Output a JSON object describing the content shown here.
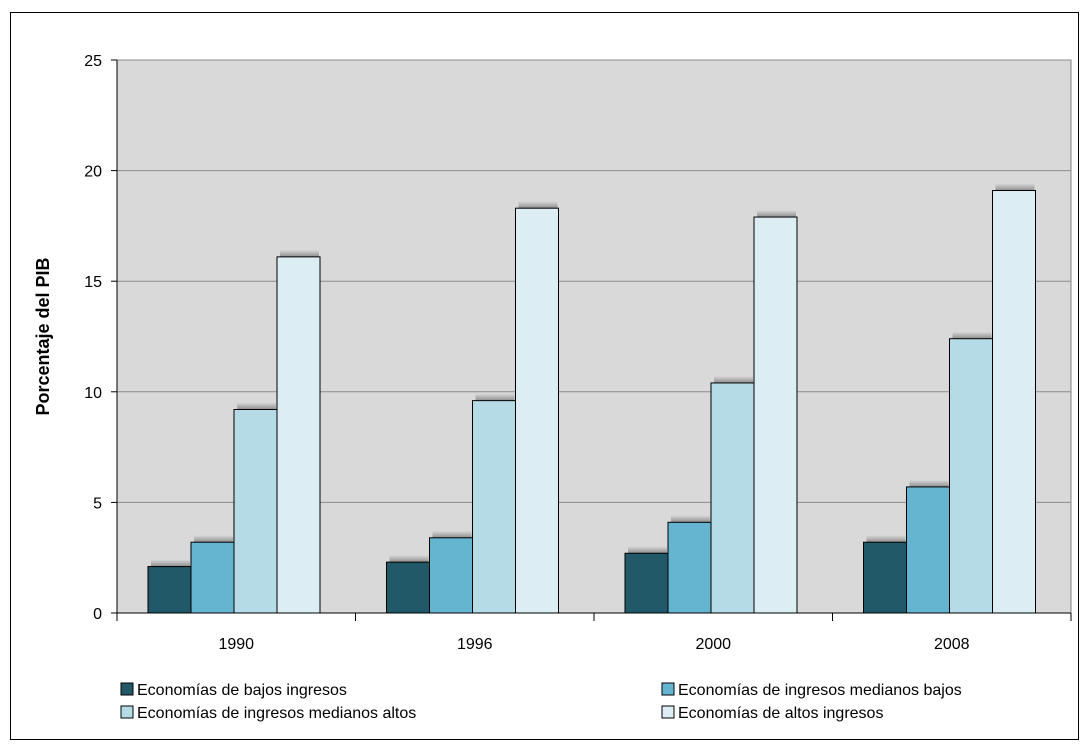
{
  "chart_data": {
    "type": "bar",
    "title": "",
    "xlabel": "",
    "ylabel": "Porcentaje del PIB",
    "categories": [
      "1990",
      "1996",
      "2000",
      "2008"
    ],
    "ylim": [
      0,
      25
    ],
    "yticks": [
      0,
      5,
      10,
      15,
      20,
      25
    ],
    "grid": true,
    "legend_position": "bottom",
    "series": [
      {
        "name": "Economías de bajos ingresos",
        "color": "#215968",
        "values": [
          2.1,
          2.3,
          2.7,
          3.2
        ]
      },
      {
        "name": "Economías de ingresos medianos bajos",
        "color": "#65B5D0",
        "values": [
          3.2,
          3.4,
          4.1,
          5.7
        ]
      },
      {
        "name": "Economías de ingresos medianos altos",
        "color": "#B5DCE6",
        "values": [
          9.2,
          9.6,
          10.4,
          12.4
        ]
      },
      {
        "name": "Economías de altos ingresos",
        "color": "#DCEEF3",
        "values": [
          16.1,
          18.3,
          17.9,
          19.1
        ]
      }
    ]
  },
  "colors": {
    "plot_background": "#D9D9D9",
    "gridline": "#8C8C8C"
  }
}
